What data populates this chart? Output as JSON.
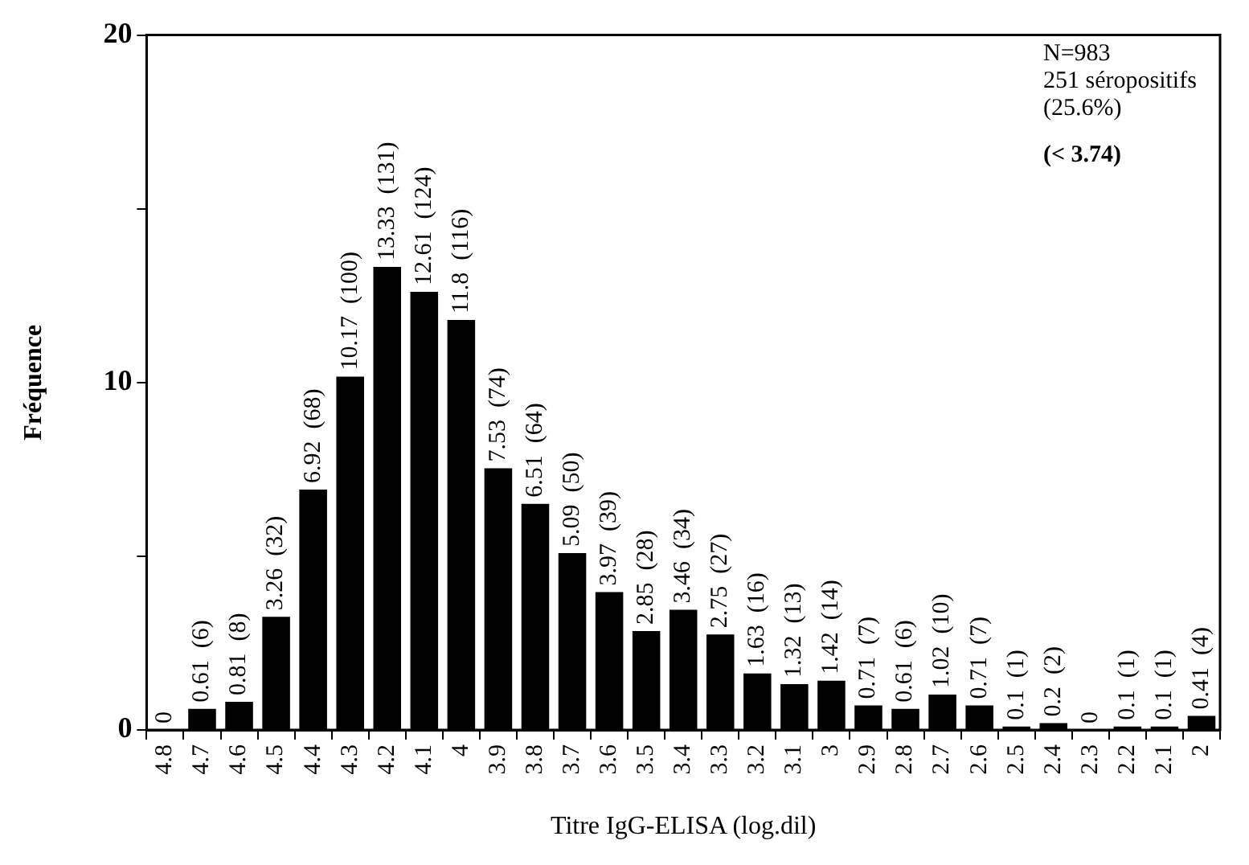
{
  "chart_data": {
    "type": "bar",
    "xlabel": "Titre IgG-ELISA (log.dil)",
    "ylabel": "Fréquence",
    "categories": [
      "4.8",
      "4.7",
      "4.6",
      "4.5",
      "4.4",
      "4.3",
      "4.2",
      "4.1",
      "4",
      "3.9",
      "3.8",
      "3.7",
      "3.6",
      "3.5",
      "3.4",
      "3.3",
      "3.2",
      "3.1",
      "3",
      "2.9",
      "2.8",
      "2.7",
      "2.6",
      "2.5",
      "2.4",
      "2.3",
      "2.2",
      "2.1",
      "2"
    ],
    "values": [
      0,
      0.61,
      0.81,
      3.26,
      6.92,
      10.17,
      13.33,
      12.61,
      11.8,
      7.53,
      6.51,
      5.09,
      3.97,
      2.85,
      3.46,
      2.75,
      1.63,
      1.32,
      1.42,
      0.71,
      0.61,
      1.02,
      0.71,
      0.1,
      0.2,
      0,
      0.1,
      0.1,
      0.41
    ],
    "value_labels": [
      "0",
      "0.61  (6)",
      "0.81  (8)",
      "3.26  (32)",
      "6.92  (68)",
      "10.17  (100)",
      "13.33  (131)",
      "12.61  (124)",
      "11.8  (116)",
      "7.53  (74)",
      "6.51  (64)",
      "5.09  (50)",
      "3.97  (39)",
      "2.85  (28)",
      "3.46  (34)",
      "2.75  (27)",
      "1.63  (16)",
      "1.32  (13)",
      "1.42  (14)",
      "0.71  (7)",
      "0.61  (6)",
      "1.02  (10)",
      "0.71  (7)",
      "0.1  (1)",
      "0.2  (2)",
      "0",
      "0.1  (1)",
      "0.1  (1)",
      "0.41  (4)"
    ],
    "color": "#000000",
    "ylim": [
      0,
      20
    ],
    "yticks": [
      0,
      {
        "value": 5,
        "label": null
      },
      10,
      {
        "value": 15,
        "label": null
      },
      20
    ],
    "grid": false,
    "legend": false,
    "annotations": [
      "N=983",
      "251 séropositifs",
      "(25.6%)",
      "(< 3.74)"
    ]
  }
}
